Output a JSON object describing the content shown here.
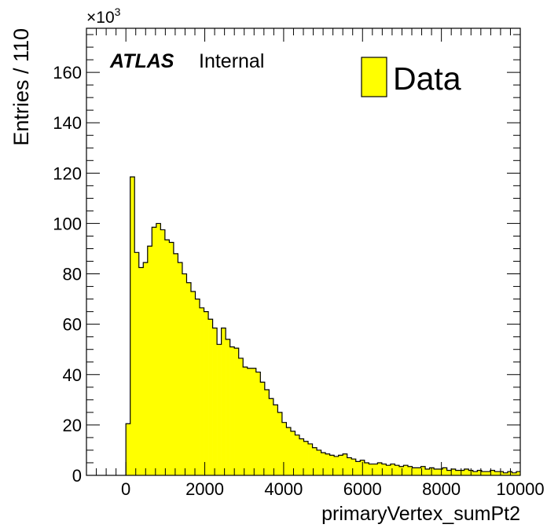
{
  "chart_data": {
    "type": "bar",
    "xlabel": "primaryVertex_sumPt2",
    "ylabel": "Entries / 110",
    "y_multiplier_base": "×10",
    "y_multiplier_exp": "3",
    "xlim": [
      -1000,
      10000
    ],
    "ylim": [
      0,
      177.5
    ],
    "y_unit_scale": 1000,
    "bin_width": 110,
    "x_ticks": [
      "0",
      "2000",
      "4000",
      "6000",
      "8000",
      "10000"
    ],
    "x_tick_values": [
      0,
      2000,
      4000,
      6000,
      8000,
      10000
    ],
    "y_ticks": [
      "0",
      "20",
      "40",
      "60",
      "80",
      "100",
      "120",
      "140",
      "160"
    ],
    "y_tick_values": [
      0,
      20,
      40,
      60,
      80,
      100,
      120,
      140,
      160
    ],
    "atlas_label": "ATLAS",
    "atlas_sublabel": "Internal",
    "legend_position": "top-right",
    "fill_color": "#ffff00",
    "line_color": "#000000",
    "series": [
      {
        "name": "Data",
        "bin_start": 0,
        "values": [
          20.5,
          118.5,
          88.5,
          82.5,
          84.5,
          91.0,
          98.5,
          100.0,
          97.5,
          93.5,
          92.5,
          88.0,
          84.5,
          80.0,
          76.5,
          73.0,
          70.0,
          66.5,
          65.0,
          62.0,
          58.5,
          52.0,
          58.5,
          54.0,
          51.0,
          50.5,
          46.5,
          43.0,
          42.5,
          42.5,
          41.0,
          37.0,
          34.0,
          30.5,
          28.0,
          25.0,
          21.0,
          19.0,
          17.5,
          16.0,
          14.5,
          13.5,
          12.5,
          11.0,
          10.0,
          9.0,
          8.5,
          8.0,
          7.5,
          8.0,
          8.5,
          7.0,
          6.5,
          5.5,
          6.0,
          5.0,
          4.5,
          4.5,
          5.0,
          4.5,
          4.0,
          4.5,
          4.0,
          3.5,
          4.0,
          3.5,
          3.0,
          3.0,
          3.5,
          2.5,
          3.0,
          2.5,
          2.5,
          3.0,
          2.0,
          2.5,
          2.0,
          2.0,
          2.5,
          2.0,
          1.5,
          2.0,
          1.5,
          1.5,
          2.0,
          1.5,
          1.5,
          1.0,
          1.5,
          1.0,
          1.5
        ]
      }
    ]
  }
}
